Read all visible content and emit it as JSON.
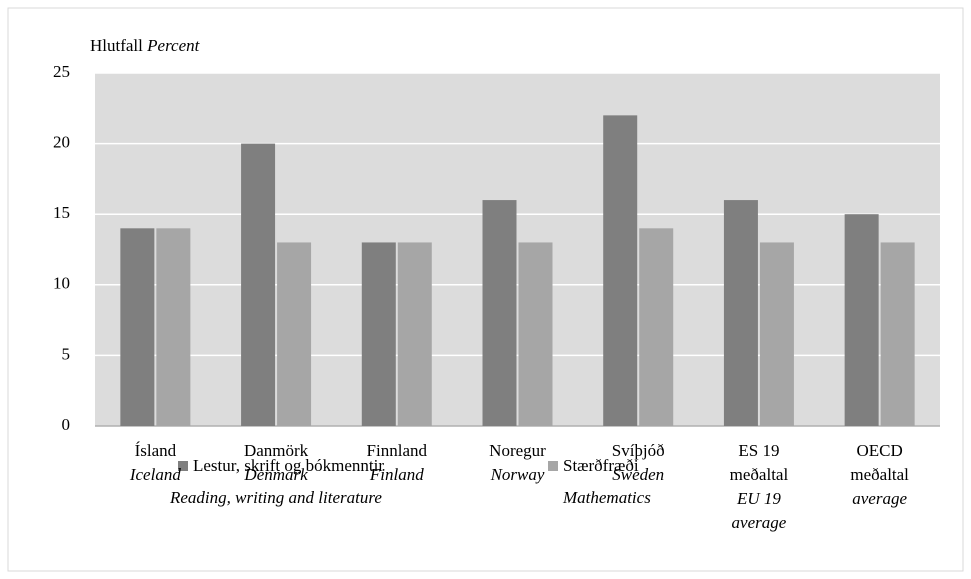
{
  "chart_data": {
    "type": "bar",
    "ylabel": "Hlutfall",
    "ylabel_en": "Percent",
    "categories": [
      "Ísland",
      "Danmörk",
      "Finnland",
      "Noregur",
      "Svíþjóð",
      "ES 19 meðaltal",
      "OECD meðaltal"
    ],
    "categories_en": [
      "Iceland",
      "Denmark",
      "Finland",
      "Norway",
      "Sweden",
      "EU 19 average",
      "average"
    ],
    "series": [
      {
        "name": "Lestur, skrift og bókmenntir",
        "name_en": "Reading, writing and literature",
        "color": "#7f7f7f",
        "values": [
          14,
          20,
          13,
          16,
          22,
          16,
          15
        ]
      },
      {
        "name": "Stærðfræði",
        "name_en": "Mathematics",
        "color": "#a6a6a6",
        "values": [
          14,
          13,
          13,
          13,
          14,
          13,
          13
        ]
      }
    ],
    "ylim": [
      0,
      25
    ],
    "yticks": [
      0,
      5,
      10,
      15,
      20,
      25
    ],
    "grid": true
  }
}
